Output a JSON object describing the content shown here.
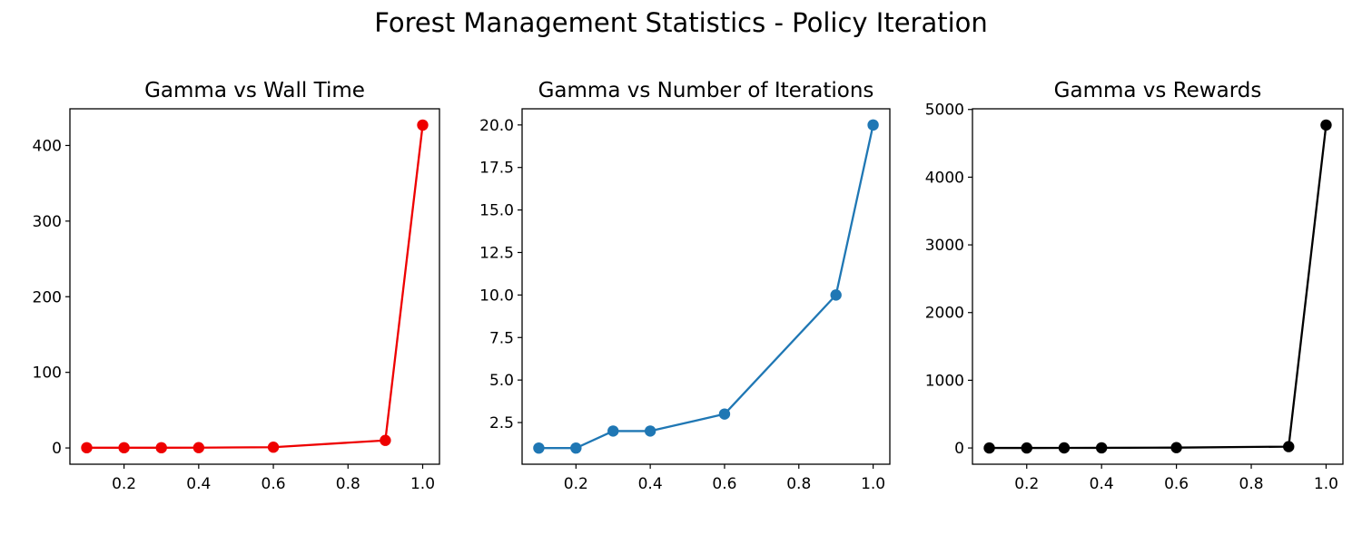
{
  "suptitle": "Forest Management Statistics - Policy Iteration",
  "chart_data": [
    {
      "type": "line",
      "title": "Gamma vs Wall Time",
      "xlabel": "",
      "ylabel": "",
      "x": [
        0.1,
        0.2,
        0.3,
        0.4,
        0.6,
        0.9,
        1.0
      ],
      "series": [
        {
          "name": "wall_time",
          "values": [
            0.3,
            0.3,
            0.3,
            0.4,
            1.0,
            10,
            427
          ],
          "color": "#ee0000"
        }
      ],
      "xlim": [
        0.055,
        1.045
      ],
      "ylim": [
        -21.5,
        448.5
      ],
      "xticks": [
        0.2,
        0.4,
        0.6,
        0.8,
        1.0
      ],
      "xtick_labels": [
        "0.2",
        "0.4",
        "0.6",
        "0.8",
        "1.0"
      ],
      "yticks": [
        0,
        100,
        200,
        300,
        400
      ],
      "ytick_labels": [
        "0",
        "100",
        "200",
        "300",
        "400"
      ],
      "grid": false
    },
    {
      "type": "line",
      "title": "Gamma vs Number of Iterations",
      "xlabel": "",
      "ylabel": "",
      "x": [
        0.1,
        0.2,
        0.3,
        0.4,
        0.6,
        0.9,
        1.0
      ],
      "series": [
        {
          "name": "iterations",
          "values": [
            1,
            1,
            2,
            2,
            3,
            10,
            20
          ],
          "color": "#1f77b4"
        }
      ],
      "xlim": [
        0.055,
        1.045
      ],
      "ylim": [
        0.05,
        20.95
      ],
      "xticks": [
        0.2,
        0.4,
        0.6,
        0.8,
        1.0
      ],
      "xtick_labels": [
        "0.2",
        "0.4",
        "0.6",
        "0.8",
        "1.0"
      ],
      "yticks": [
        2.5,
        5.0,
        7.5,
        10.0,
        12.5,
        15.0,
        17.5,
        20.0
      ],
      "ytick_labels": [
        "2.5",
        "5.0",
        "7.5",
        "10.0",
        "12.5",
        "15.0",
        "17.5",
        "20.0"
      ],
      "grid": false
    },
    {
      "type": "line",
      "title": "Gamma vs Rewards",
      "xlabel": "",
      "ylabel": "",
      "x": [
        0.1,
        0.2,
        0.3,
        0.4,
        0.6,
        0.9,
        1.0
      ],
      "series": [
        {
          "name": "rewards",
          "values": [
            0,
            0,
            1,
            2,
            5,
            20,
            4770
          ],
          "color": "#000000"
        }
      ],
      "xlim": [
        0.055,
        1.045
      ],
      "ylim": [
        -240,
        5010
      ],
      "xticks": [
        0.2,
        0.4,
        0.6,
        0.8,
        1.0
      ],
      "xtick_labels": [
        "0.2",
        "0.4",
        "0.6",
        "0.8",
        "1.0"
      ],
      "yticks": [
        0,
        1000,
        2000,
        3000,
        4000,
        5000
      ],
      "ytick_labels": [
        "0",
        "1000",
        "2000",
        "3000",
        "4000",
        "5000"
      ],
      "grid": false
    }
  ]
}
